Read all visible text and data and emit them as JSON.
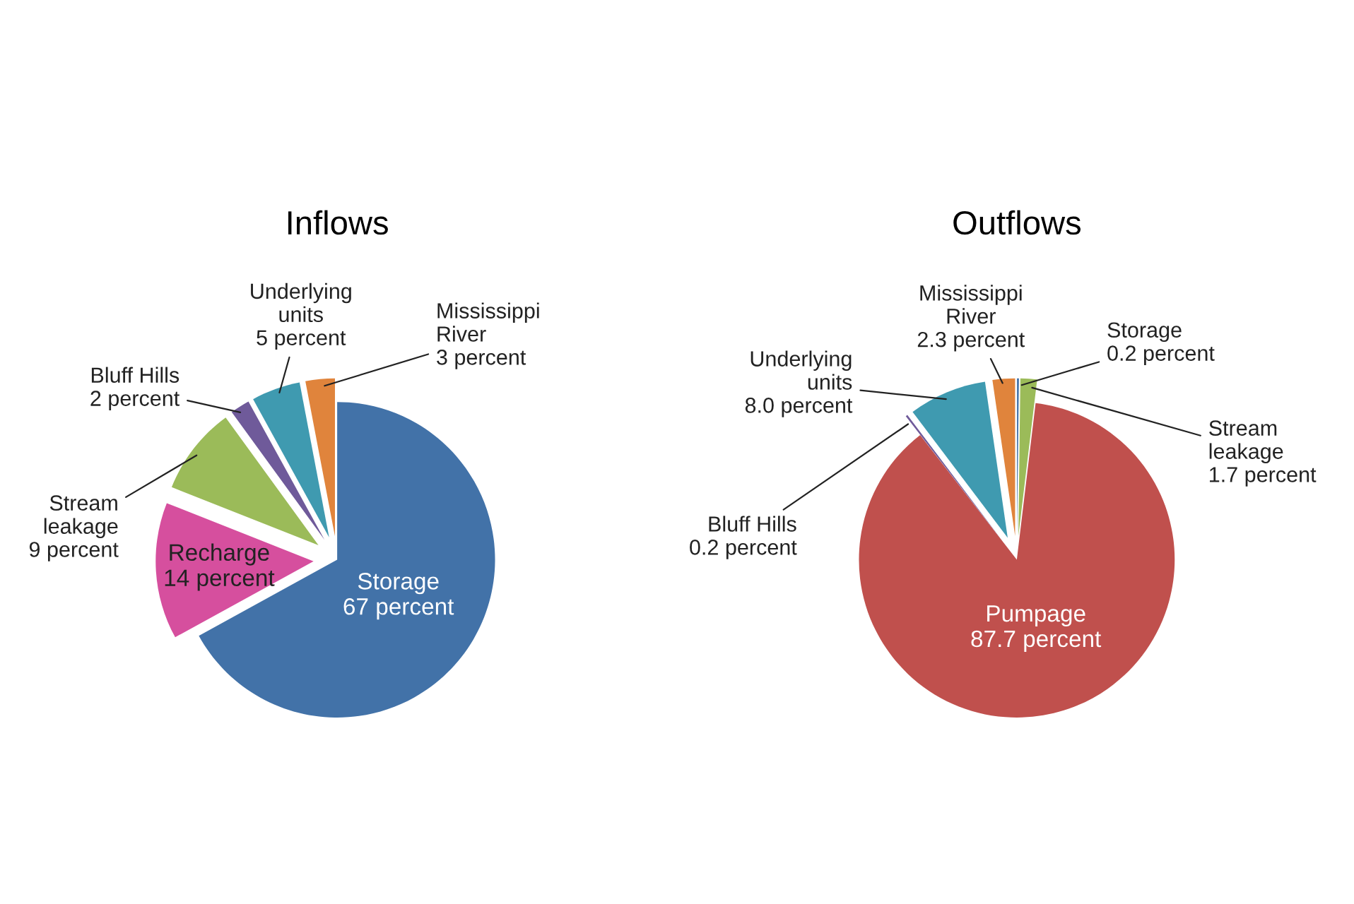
{
  "chart_data": [
    {
      "type": "pie",
      "title": "Inflows",
      "categories": [
        "Storage",
        "Recharge",
        "Stream leakage",
        "Bluff Hills",
        "Underlying units",
        "Mississippi River"
      ],
      "values": [
        67,
        14,
        9,
        2,
        5,
        3
      ],
      "value_labels": [
        "67 percent",
        "14 percent",
        "9 percent",
        "2 percent",
        "5 percent",
        "3 percent"
      ],
      "colors": [
        "#4272a8",
        "#d64f9e",
        "#9bbb59",
        "#6f5a9a",
        "#3f9ab0",
        "#e0843c"
      ]
    },
    {
      "type": "pie",
      "title": "Outflows",
      "categories": [
        "Storage",
        "Stream leakage",
        "Pumpage",
        "Bluff Hills",
        "Underlying units",
        "Mississippi River"
      ],
      "values": [
        0.2,
        1.7,
        87.7,
        0.2,
        8.0,
        2.3
      ],
      "value_labels": [
        "0.2 percent",
        "1.7 percent",
        "87.7 percent",
        "0.2 percent",
        "8.0 percent",
        "2.3 percent"
      ],
      "colors": [
        "#4272a8",
        "#9bbb59",
        "#c0504d",
        "#6f5a9a",
        "#3f9ab0",
        "#e0843c"
      ]
    }
  ]
}
